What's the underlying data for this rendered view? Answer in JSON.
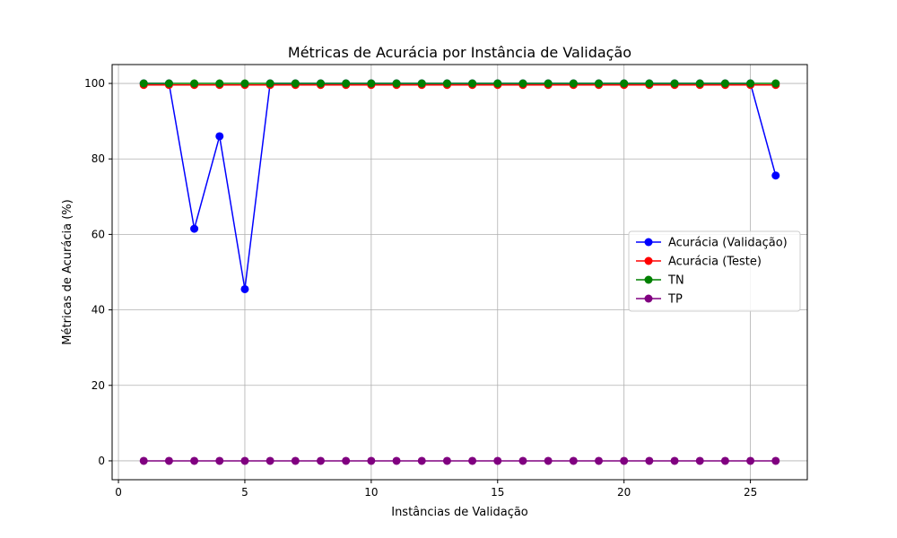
{
  "chart_data": {
    "type": "line",
    "title": "Métricas de Acurácia por Instância de Validação",
    "xlabel": "Instâncias de Validação",
    "ylabel": "Métricas de Acurácia (%)",
    "xlim": [
      -0.25,
      27.25
    ],
    "ylim": [
      -5,
      105
    ],
    "xticks": [
      0,
      5,
      10,
      15,
      20,
      25
    ],
    "yticks": [
      0,
      20,
      40,
      60,
      80,
      100
    ],
    "grid": true,
    "legend_position": "center-right",
    "x": [
      1,
      2,
      3,
      4,
      5,
      6,
      7,
      8,
      9,
      10,
      11,
      12,
      13,
      14,
      15,
      16,
      17,
      18,
      19,
      20,
      21,
      22,
      23,
      24,
      25,
      26
    ],
    "series": [
      {
        "name": "Acurácia (Validação)",
        "color": "#0000ff",
        "values": [
          100,
          100,
          61.5,
          86,
          45.5,
          100,
          100,
          100,
          100,
          100,
          100,
          100,
          100,
          100,
          100,
          100,
          100,
          100,
          100,
          100,
          100,
          100,
          100,
          100,
          100,
          75.6
        ]
      },
      {
        "name": "Acurácia (Teste)",
        "color": "#ff0000",
        "values": [
          99.6,
          99.6,
          99.6,
          99.6,
          99.6,
          99.6,
          99.6,
          99.6,
          99.6,
          99.6,
          99.6,
          99.6,
          99.6,
          99.6,
          99.6,
          99.6,
          99.6,
          99.6,
          99.6,
          99.6,
          99.6,
          99.6,
          99.6,
          99.6,
          99.6,
          99.6
        ]
      },
      {
        "name": "TN",
        "color": "#008000",
        "values": [
          100,
          100,
          100,
          100,
          100,
          100,
          100,
          100,
          100,
          100,
          100,
          100,
          100,
          100,
          100,
          100,
          100,
          100,
          100,
          100,
          100,
          100,
          100,
          100,
          100,
          100
        ]
      },
      {
        "name": "TP",
        "color": "#800080",
        "values": [
          0,
          0,
          0,
          0,
          0,
          0,
          0,
          0,
          0,
          0,
          0,
          0,
          0,
          0,
          0,
          0,
          0,
          0,
          0,
          0,
          0,
          0,
          0,
          0,
          0,
          0
        ]
      }
    ]
  }
}
